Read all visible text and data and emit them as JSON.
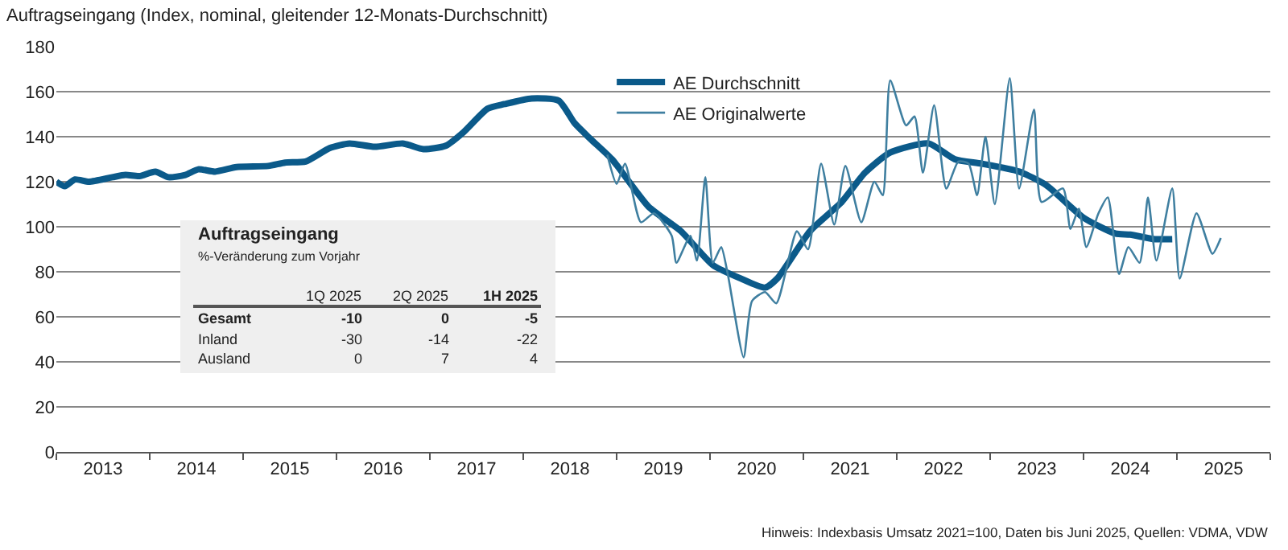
{
  "chart_data": [
    {
      "type": "line",
      "title": "Auftragseingang (Index, nominal, gleitender 12-Monats-Durchschnitt)",
      "series": [
        {
          "name": "AE Durchschnitt",
          "color": "#0b5a8a",
          "x": [
            2013.0,
            2013.09,
            2013.2,
            2013.35,
            2013.6,
            2013.74,
            2013.89,
            2014.06,
            2014.2,
            2014.38,
            2014.52,
            2014.7,
            2014.93,
            2015.27,
            2015.45,
            2015.67,
            2015.93,
            2016.14,
            2016.41,
            2016.71,
            2016.93,
            2017.17,
            2017.36,
            2017.62,
            2017.8,
            2018.09,
            2018.38,
            2018.55,
            2018.72,
            2018.95,
            2019.34,
            2019.69,
            2020.03,
            2020.33,
            2020.59,
            2020.72,
            2021.07,
            2021.41,
            2021.66,
            2021.93,
            2022.34,
            2022.62,
            2022.91,
            2023.31,
            2023.6,
            2024.0,
            2024.34,
            2024.5,
            2024.76,
            2024.95
          ],
          "values": [
            120,
            118,
            121,
            120,
            122,
            123,
            122.5,
            124.5,
            122,
            123,
            125.5,
            124.5,
            126.5,
            127,
            128.5,
            129,
            135,
            137,
            135.5,
            137,
            134.5,
            136,
            142,
            152.5,
            154.5,
            157,
            156,
            146,
            139,
            130,
            109,
            98,
            83,
            77,
            73,
            77,
            98,
            111,
            124,
            133,
            137,
            130,
            128,
            124.5,
            118.5,
            104,
            97,
            96.5,
            94.5,
            94.5
          ]
        },
        {
          "name": "AE Originalwerte",
          "color": "#3f7fa0",
          "x": [
            2018.9,
            2019.0,
            2019.09,
            2019.26,
            2019.4,
            2019.59,
            2019.64,
            2019.79,
            2019.86,
            2019.95,
            2020.03,
            2020.12,
            2020.19,
            2020.36,
            2020.45,
            2020.59,
            2020.71,
            2020.93,
            2021.05,
            2021.19,
            2021.33,
            2021.45,
            2021.62,
            2021.76,
            2021.85,
            2021.93,
            2022.1,
            2022.19,
            2022.28,
            2022.4,
            2022.53,
            2022.66,
            2022.77,
            2022.86,
            2022.95,
            2023.05,
            2023.21,
            2023.31,
            2023.47,
            2023.55,
            2023.78,
            2023.86,
            2023.95,
            2024.03,
            2024.16,
            2024.26,
            2024.38,
            2024.48,
            2024.6,
            2024.69,
            2024.78,
            2024.95,
            2025.03,
            2025.21,
            2025.38,
            2025.47
          ],
          "values": [
            132,
            119,
            128,
            102,
            106,
            96,
            84,
            96,
            85,
            122,
            84,
            91,
            79,
            42,
            67,
            71,
            66,
            98,
            90,
            128,
            101,
            127,
            102,
            120,
            114,
            165,
            145,
            149,
            124,
            154,
            117,
            129,
            128,
            114,
            140,
            110,
            166,
            117,
            152,
            111,
            117,
            99,
            108,
            91,
            106,
            113,
            79,
            91,
            84,
            113,
            85,
            117,
            77,
            106,
            88,
            95
          ]
        }
      ],
      "xlim": [
        2013,
        2026
      ],
      "xticks": [
        {
          "value": 2013,
          "label": null
        },
        {
          "value": 2013.5,
          "label": "2013"
        },
        {
          "value": 2014,
          "label": null
        },
        {
          "value": 2014.5,
          "label": "2014"
        },
        {
          "value": 2015,
          "label": null
        },
        {
          "value": 2015.5,
          "label": "2015"
        },
        {
          "value": 2016,
          "label": null
        },
        {
          "value": 2016.5,
          "label": "2016"
        },
        {
          "value": 2017,
          "label": null
        },
        {
          "value": 2017.5,
          "label": "2017"
        },
        {
          "value": 2018,
          "label": null
        },
        {
          "value": 2018.5,
          "label": "2018"
        },
        {
          "value": 2019,
          "label": null
        },
        {
          "value": 2019.5,
          "label": "2019"
        },
        {
          "value": 2020,
          "label": null
        },
        {
          "value": 2020.5,
          "label": "2020"
        },
        {
          "value": 2021,
          "label": null
        },
        {
          "value": 2021.5,
          "label": "2021"
        },
        {
          "value": 2022,
          "label": null
        },
        {
          "value": 2022.5,
          "label": "2022"
        },
        {
          "value": 2023,
          "label": null
        },
        {
          "value": 2023.5,
          "label": "2023"
        },
        {
          "value": 2024,
          "label": null
        },
        {
          "value": 2024.5,
          "label": "2024"
        },
        {
          "value": 2025,
          "label": null
        },
        {
          "value": 2025.5,
          "label": "2025"
        },
        {
          "value": 2026,
          "label": null
        }
      ],
      "ylim": [
        0,
        180
      ],
      "yticks": [
        0,
        20,
        40,
        60,
        80,
        100,
        120,
        140,
        160,
        180
      ],
      "grid": "y",
      "legend": "top",
      "marker": "none",
      "line_style": "solid",
      "annotations": [
        "Hinweis: Indexbasis Umsatz 2021=100, Daten bis Juni 2025, Quellen: VDMA, VDW"
      ]
    },
    {
      "type": "other",
      "title": "Auftragseingang",
      "subtitle": "%-Veränderung zum Vorjahr",
      "categories": [
        "1Q 2025",
        "2Q 2025",
        "1H 2025"
      ],
      "y_categories": [
        "Gesamt",
        "Inland",
        "Ausland"
      ],
      "cell_labels": [
        [
          "-10",
          "0",
          "-5"
        ],
        [
          "-30",
          "-14",
          "-22"
        ],
        [
          "0",
          "7",
          "4"
        ]
      ]
    }
  ]
}
